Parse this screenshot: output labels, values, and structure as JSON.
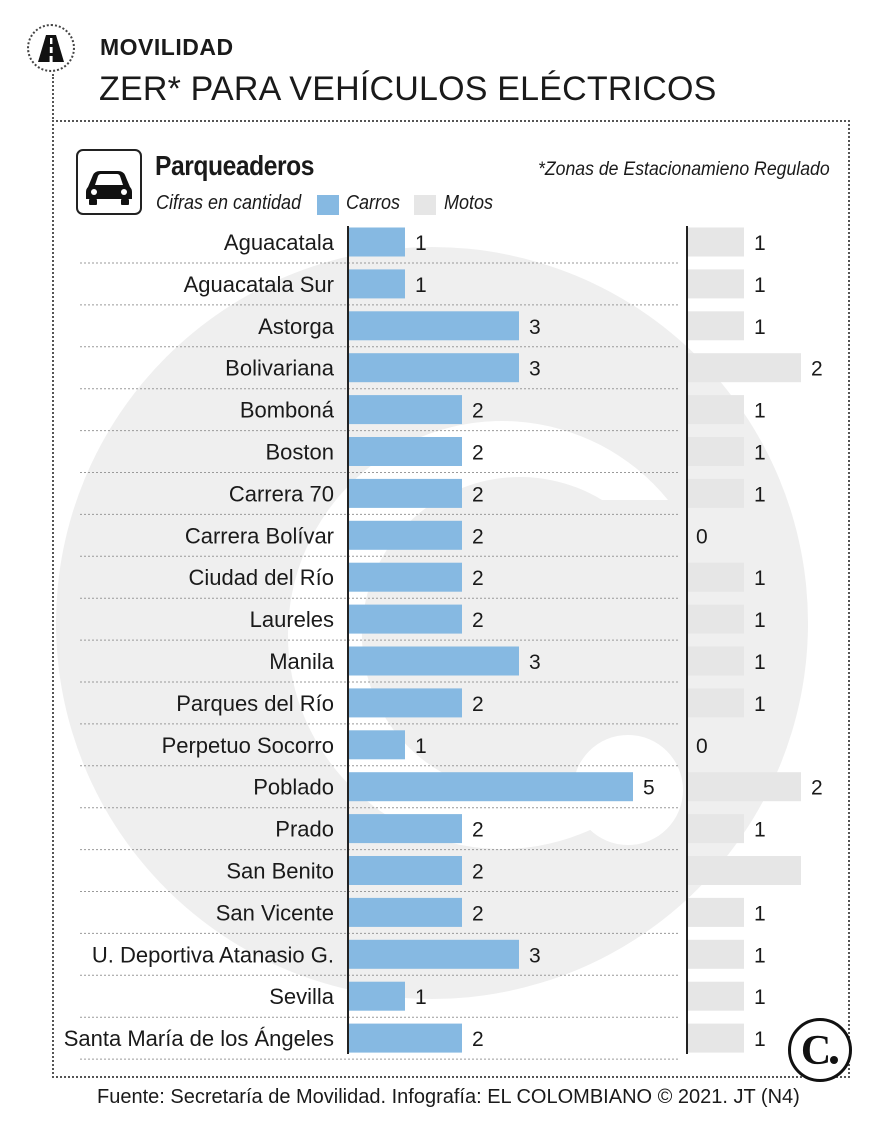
{
  "header": {
    "section": "MOVILIDAD",
    "title": "ZER* PARA VEHÍCULOS ELÉCTRICOS"
  },
  "panel": {
    "title": "Parqueaderos",
    "subtitle": "Cifras en cantidad",
    "note": "*Zonas de Estacionamieno Regulado",
    "icon": "car-icon"
  },
  "footer": {
    "source": "Fuente: Secretaría de Movilidad. Infografía: EL COLOMBIANO © 2021. JT (N4)"
  },
  "colors": {
    "carros": "#86b9e2",
    "motos": "#e6e6e6",
    "watermark": "#efefef"
  },
  "chart_data": {
    "type": "bar",
    "orientation": "horizontal",
    "categories": [
      "Aguacatala",
      "Aguacatala Sur",
      "Astorga",
      "Bolivariana",
      "Bomboná",
      "Boston",
      "Carrera 70",
      "Carrera Bolívar",
      "Ciudad del Río",
      "Laureles",
      "Manila",
      "Parques del Río",
      "Perpetuo Socorro",
      "Poblado",
      "Prado",
      "San Benito",
      "San Vicente",
      "U. Deportiva Atanasio G.",
      "Sevilla",
      "Santa María de los Ángeles"
    ],
    "series": [
      {
        "name": "Carros",
        "values": [
          1,
          1,
          3,
          3,
          2,
          2,
          2,
          2,
          2,
          2,
          3,
          2,
          1,
          5,
          2,
          2,
          2,
          3,
          1,
          2
        ],
        "labels": [
          "1",
          "1",
          "3",
          "3",
          "2",
          "2",
          "2",
          "2",
          "2",
          "2",
          "3",
          "2",
          "1",
          "5",
          "2",
          "2",
          "2",
          "3",
          "1",
          "2"
        ]
      },
      {
        "name": "Motos",
        "values": [
          1,
          1,
          1,
          2,
          1,
          1,
          1,
          0,
          1,
          1,
          1,
          1,
          0,
          2,
          1,
          2,
          1,
          1,
          1,
          1
        ],
        "labels": [
          "1",
          "1",
          "1",
          "2",
          "1",
          "1",
          "1",
          "0",
          "1",
          "1",
          "1",
          "1",
          "0",
          "2",
          "1",
          "",
          "1",
          "1",
          "1",
          "1"
        ]
      }
    ],
    "legend": "top-left",
    "grid": false
  }
}
